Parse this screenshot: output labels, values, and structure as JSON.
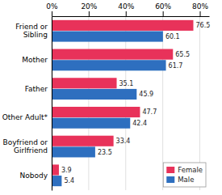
{
  "chart_data": {
    "type": "bar",
    "orientation": "horizontal",
    "categories": [
      "Friend or\nSibling",
      "Mother",
      "Father",
      "Other Adult*",
      "Boyfriend or\nGirlfriend",
      "Nobody"
    ],
    "series": [
      {
        "name": "Female",
        "color": "#E8325A",
        "values": [
          76.5,
          65.5,
          35.1,
          47.7,
          33.4,
          3.9
        ]
      },
      {
        "name": "Male",
        "color": "#2E6FBF",
        "values": [
          60.1,
          61.7,
          45.9,
          42.4,
          23.5,
          5.4
        ]
      }
    ],
    "xlim": [
      0,
      85
    ],
    "xticks": [
      {
        "value": 0,
        "label": "0%"
      },
      {
        "value": 20,
        "label": "20%"
      },
      {
        "value": 40,
        "label": "40%"
      },
      {
        "value": 60,
        "label": "60%"
      },
      {
        "value": 80,
        "label": "80%"
      }
    ],
    "grid": true,
    "legend": "lower right",
    "data_labels": true
  }
}
